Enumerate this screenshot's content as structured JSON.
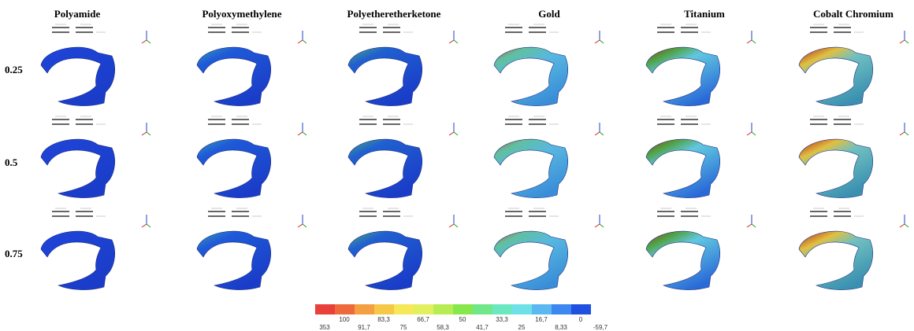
{
  "columns": [
    "Polyamide",
    "Polyoxymethylene",
    "Polyetheretherketone",
    "Gold",
    "Titanium",
    "Cobalt Chromium"
  ],
  "rows": [
    "0.25",
    "0.5",
    "0.75"
  ],
  "legend": {
    "upper_labels": [
      "100",
      "83,3",
      "66,7",
      "50",
      "33,3",
      "16,7",
      "0"
    ],
    "lower_labels": [
      "353",
      "91,7",
      "75",
      "58,3",
      "41,7",
      "25",
      "8,33",
      "-59,7"
    ]
  }
}
